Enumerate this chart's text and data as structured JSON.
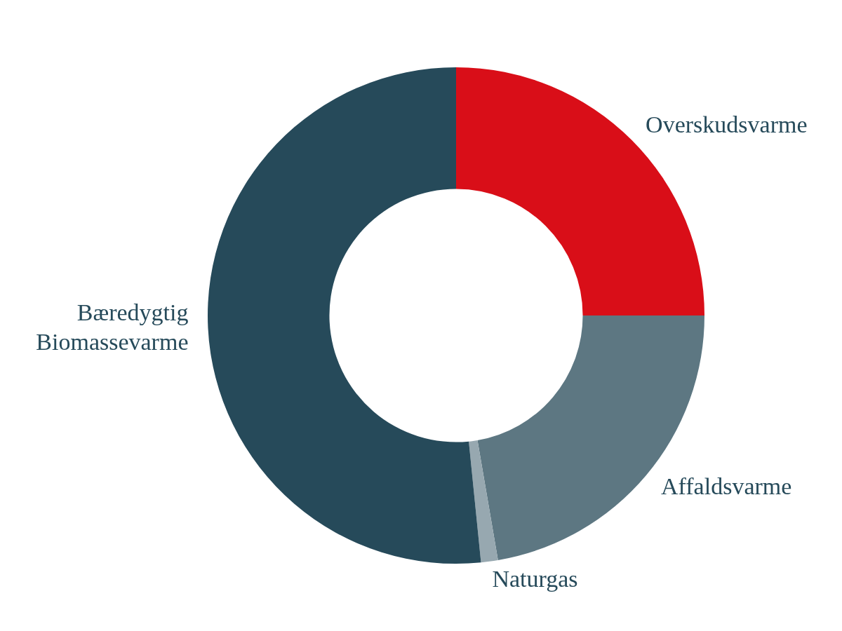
{
  "chart_data": {
    "type": "donut",
    "categories": [
      "Overskudsvarme",
      "Affaldsvarme",
      "Naturgas",
      "Bæredygtig Biomassevarme"
    ],
    "values": [
      25,
      22.3,
      1.1,
      51.6
    ],
    "colors": [
      "#d90e18",
      "#5d7782",
      "#97a8b0",
      "#264a5a"
    ],
    "legend": false
  }
}
